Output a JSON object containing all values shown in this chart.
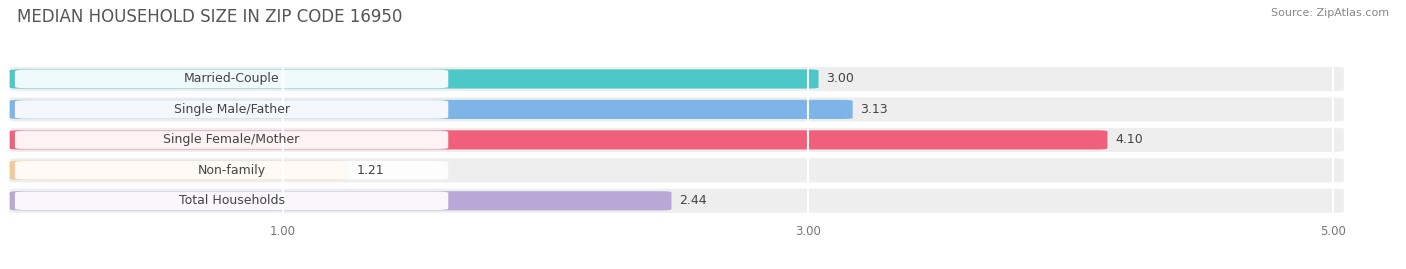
{
  "title": "MEDIAN HOUSEHOLD SIZE IN ZIP CODE 16950",
  "source": "Source: ZipAtlas.com",
  "categories": [
    "Married-Couple",
    "Single Male/Father",
    "Single Female/Mother",
    "Non-family",
    "Total Households"
  ],
  "values": [
    3.0,
    3.13,
    4.1,
    1.21,
    2.44
  ],
  "bar_colors": [
    "#4DC8C8",
    "#7EB5E8",
    "#F0607A",
    "#F5C89A",
    "#B8A8D8"
  ],
  "background_color": "#FFFFFF",
  "row_bg_color": "#EEEEEE",
  "xlim_min": 0.0,
  "xlim_max": 5.2,
  "x_axis_min": 1.0,
  "x_axis_max": 5.0,
  "xticks": [
    1.0,
    3.0,
    5.0
  ],
  "xtick_labels": [
    "1.00",
    "3.00",
    "5.00"
  ],
  "title_fontsize": 12,
  "source_fontsize": 8,
  "label_fontsize": 9,
  "value_fontsize": 9
}
